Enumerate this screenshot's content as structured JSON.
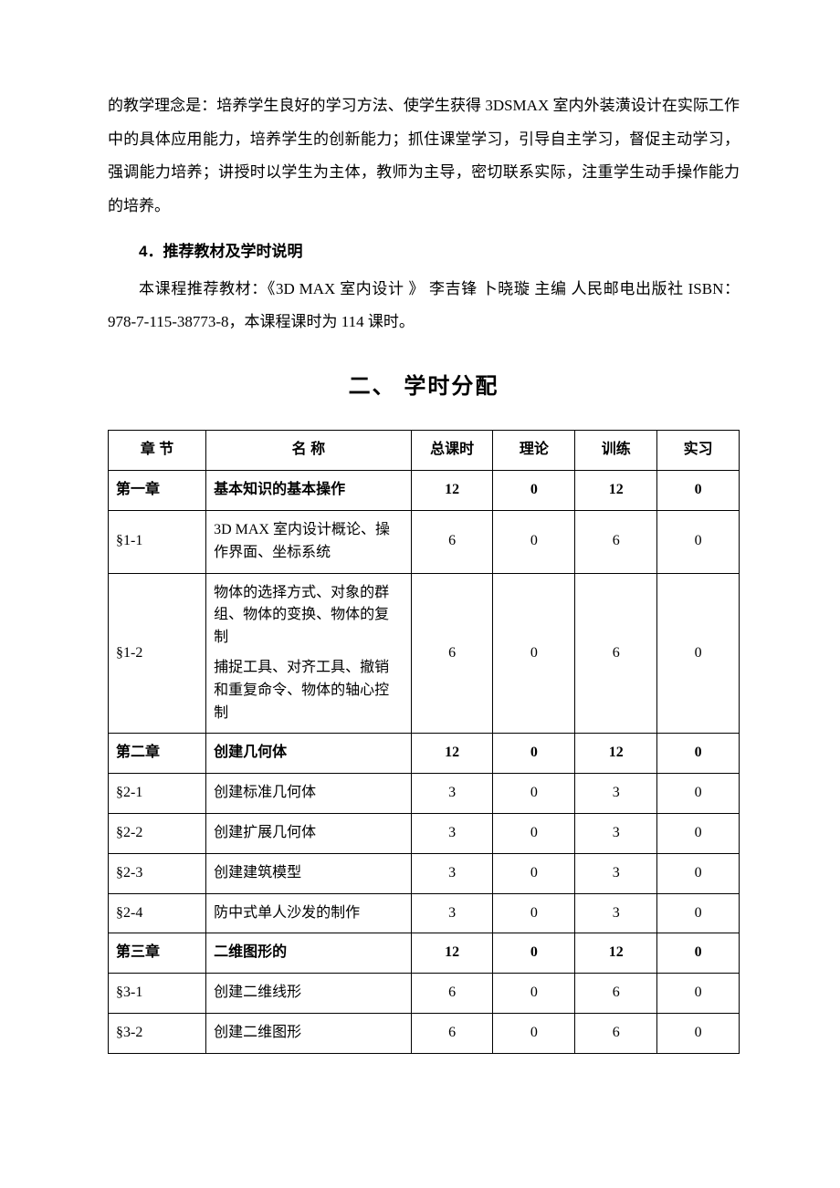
{
  "intro": {
    "para1": "的教学理念是：培养学生良好的学习方法、使学生获得 3DSMAX 室内外装潢设计在实际工作中的具体应用能力，培养学生的创新能力；抓住课堂学习，引导自主学习，督促主动学习，强调能力培养；讲授时以学生为主体，教师为主导，密切联系实际，注重学生动手操作能力的培养。",
    "section4_head": "4．推荐教材及学时说明",
    "section4_body": "本课程推荐教材：《3D MAX 室内设计 》  李吉锋  卜晓璇  主编    人民邮电出版社  ISBN：978-7-115-38773-8，本课程课时为 114 课时。"
  },
  "section2_title": "二、 学时分配",
  "table": {
    "columns": [
      "章  节",
      "名     称",
      "总课时",
      "理论",
      "训练",
      "实习"
    ],
    "col_widths_pct": [
      15.5,
      32.5,
      13,
      13,
      13,
      13
    ],
    "border_color": "#000000",
    "header_font": "SimHei",
    "body_font": "SimSun",
    "cell_fontsize": 16,
    "rows": [
      {
        "bold": true,
        "chap": "第一章",
        "name": [
          "基本知识的基本操作"
        ],
        "total": 12,
        "theory": 0,
        "train": 12,
        "practice": 0
      },
      {
        "bold": false,
        "chap": "§1-1",
        "name": [
          "3D MAX 室内设计概论、操作界面、坐标系统"
        ],
        "total": 6,
        "theory": 0,
        "train": 6,
        "practice": 0
      },
      {
        "bold": false,
        "chap": "§1-2",
        "name": [
          "物体的选择方式、对象的群组、物体的变换、物体的复制",
          "捕捉工具、对齐工具、撤销和重复命令、物体的轴心控制"
        ],
        "total": 6,
        "theory": 0,
        "train": 6,
        "practice": 0
      },
      {
        "bold": true,
        "chap": "第二章",
        "name": [
          "创建几何体"
        ],
        "total": 12,
        "theory": 0,
        "train": 12,
        "practice": 0
      },
      {
        "bold": false,
        "chap": "§2-1",
        "name": [
          "创建标准几何体"
        ],
        "total": 3,
        "theory": 0,
        "train": 3,
        "practice": 0
      },
      {
        "bold": false,
        "chap": "§2-2",
        "name": [
          "创建扩展几何体"
        ],
        "total": 3,
        "theory": 0,
        "train": 3,
        "practice": 0
      },
      {
        "bold": false,
        "chap": "§2-3",
        "name": [
          "创建建筑模型"
        ],
        "total": 3,
        "theory": 0,
        "train": 3,
        "practice": 0
      },
      {
        "bold": false,
        "chap": "§2-4",
        "name": [
          "防中式单人沙发的制作"
        ],
        "total": 3,
        "theory": 0,
        "train": 3,
        "practice": 0
      },
      {
        "bold": true,
        "chap": "第三章",
        "name": [
          "二维图形的"
        ],
        "total": 12,
        "theory": 0,
        "train": 12,
        "practice": 0
      },
      {
        "bold": false,
        "chap": "§3-1",
        "name": [
          "创建二维线形"
        ],
        "total": 6,
        "theory": 0,
        "train": 6,
        "practice": 0
      },
      {
        "bold": false,
        "chap": "§3-2",
        "name": [
          "创建二维图形"
        ],
        "total": 6,
        "theory": 0,
        "train": 6,
        "practice": 0
      }
    ]
  },
  "style": {
    "page_bg": "#ffffff",
    "text_color": "#000000",
    "body_fontsize": 17,
    "body_lineheight": 2.15,
    "h2_fontsize": 24
  }
}
